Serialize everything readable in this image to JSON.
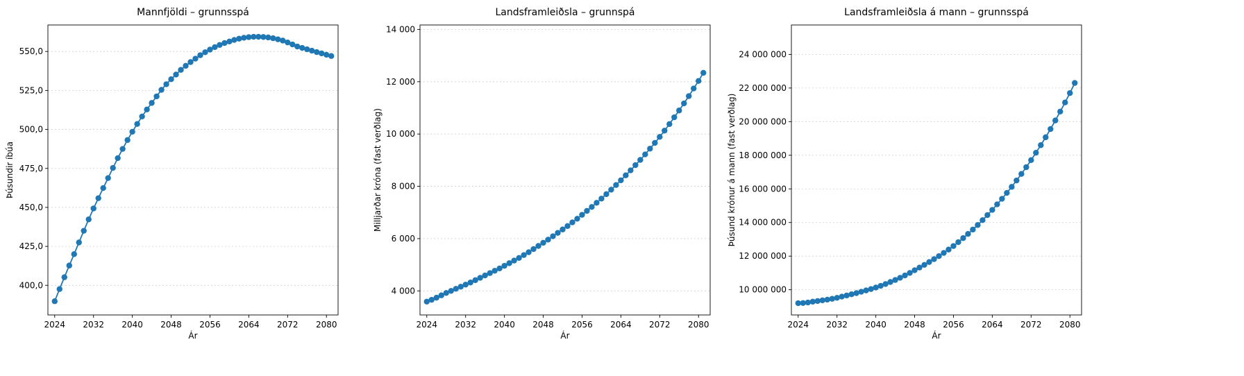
{
  "chart_data": [
    {
      "type": "line",
      "title": "Mannfjöldi – grunnsspá",
      "xlabel": "Ár",
      "ylabel": "Þúsundir íbúa",
      "xlim": [
        2022.6,
        2082.4
      ],
      "ylim": [
        381.0,
        567.0
      ],
      "xticks": [
        2024,
        2032,
        2040,
        2048,
        2056,
        2064,
        2072,
        2080
      ],
      "xtick_labels": [
        "2024",
        "2032",
        "2040",
        "2048",
        "2056",
        "2064",
        "2072",
        "2080"
      ],
      "yticks": [
        400,
        425,
        450,
        475,
        500,
        525,
        550
      ],
      "ytick_labels": [
        "400,0",
        "425,0",
        "450,0",
        "475,0",
        "500,0",
        "525,0",
        "550,0"
      ],
      "grid": "y",
      "color": "#1f77b4",
      "series": [
        {
          "x": [
            2024,
            2025,
            2026,
            2027,
            2028,
            2029,
            2030,
            2031,
            2032,
            2033,
            2034,
            2035,
            2036,
            2037,
            2038,
            2039,
            2040,
            2041,
            2042,
            2043,
            2044,
            2045,
            2046,
            2047,
            2048,
            2049,
            2050,
            2051,
            2052,
            2053,
            2054,
            2055,
            2056,
            2057,
            2058,
            2059,
            2060,
            2061,
            2062,
            2063,
            2064,
            2065,
            2066,
            2067,
            2068,
            2069,
            2070,
            2071,
            2072,
            2073,
            2074,
            2075,
            2076,
            2077,
            2078,
            2079,
            2080,
            2081
          ],
          "y": [
            389.8,
            397.6,
            405.2,
            412.7,
            420.0,
            427.5,
            435.0,
            442.3,
            449.3,
            455.9,
            462.4,
            468.8,
            475.3,
            481.6,
            487.5,
            493.2,
            498.5,
            503.5,
            508.3,
            512.8,
            517.0,
            521.2,
            525.4,
            529.0,
            532.2,
            535.2,
            538.2,
            540.8,
            543.2,
            545.4,
            547.6,
            549.5,
            551.2,
            552.8,
            554.2,
            555.4,
            556.4,
            557.4,
            558.2,
            558.8,
            559.2,
            559.4,
            559.4,
            559.3,
            559.0,
            558.5,
            557.8,
            557.0,
            555.8,
            554.5,
            553.2,
            552.3,
            551.4,
            550.5,
            549.6,
            548.8,
            547.9,
            547.1
          ]
        }
      ]
    },
    {
      "type": "line",
      "title": "Landsframleiðsla – grunnspá",
      "xlabel": "Ár",
      "ylabel": "Milljarðar króna (fast verðlag)",
      "xlim": [
        2022.6,
        2082.4
      ],
      "ylim": [
        3080,
        14170
      ],
      "xticks": [
        2024,
        2032,
        2040,
        2048,
        2056,
        2064,
        2072,
        2080
      ],
      "xtick_labels": [
        "2024",
        "2032",
        "2040",
        "2048",
        "2056",
        "2064",
        "2072",
        "2080"
      ],
      "yticks": [
        4000,
        6000,
        8000,
        10000,
        12000,
        14000
      ],
      "ytick_labels": [
        "4 000",
        "6 000",
        "8 000",
        "10 000",
        "12 000",
        "14 000"
      ],
      "grid": "y",
      "color": "#1f77b4",
      "series": [
        {
          "x": [
            2024,
            2025,
            2026,
            2027,
            2028,
            2029,
            2030,
            2031,
            2032,
            2033,
            2034,
            2035,
            2036,
            2037,
            2038,
            2039,
            2040,
            2041,
            2042,
            2043,
            2044,
            2045,
            2046,
            2047,
            2048,
            2049,
            2050,
            2051,
            2052,
            2053,
            2054,
            2055,
            2056,
            2057,
            2058,
            2059,
            2060,
            2061,
            2062,
            2063,
            2064,
            2065,
            2066,
            2067,
            2068,
            2069,
            2070,
            2071,
            2072,
            2073,
            2074,
            2075,
            2076,
            2077,
            2078,
            2079,
            2080,
            2081
          ],
          "y": [
            3590,
            3660,
            3740,
            3830,
            3920,
            4000,
            4080,
            4160,
            4240,
            4320,
            4410,
            4500,
            4590,
            4680,
            4770,
            4860,
            4960,
            5060,
            5160,
            5260,
            5370,
            5480,
            5600,
            5720,
            5840,
            5960,
            6090,
            6220,
            6350,
            6480,
            6620,
            6760,
            6910,
            7060,
            7210,
            7370,
            7530,
            7700,
            7870,
            8050,
            8230,
            8420,
            8610,
            8810,
            9010,
            9220,
            9440,
            9660,
            9890,
            10130,
            10380,
            10640,
            10900,
            11170,
            11450,
            11740,
            12030,
            12340
          ]
        }
      ]
    },
    {
      "type": "line",
      "title": "Landsframleiðsla á mann – grunnsspá",
      "xlabel": "Ár",
      "ylabel": "Þúsund krónur á mann (fast verðlag)",
      "xlim": [
        2022.6,
        2082.4
      ],
      "ylim": [
        8500000,
        25750000
      ],
      "xticks": [
        2024,
        2032,
        2040,
        2048,
        2056,
        2064,
        2072,
        2080
      ],
      "xtick_labels": [
        "2024",
        "2032",
        "2040",
        "2048",
        "2056",
        "2064",
        "2072",
        "2080"
      ],
      "yticks": [
        10000000,
        12000000,
        14000000,
        16000000,
        18000000,
        20000000,
        22000000,
        24000000
      ],
      "ytick_labels": [
        "10 000 000",
        "12 000 000",
        "14 000 000",
        "16 000 000",
        "18 000 000",
        "20 000 000",
        "22 000 000",
        "24 000 000"
      ],
      "grid": "y",
      "color": "#1f77b4",
      "series": [
        {
          "x": [
            2024,
            2025,
            2026,
            2027,
            2028,
            2029,
            2030,
            2031,
            2032,
            2033,
            2034,
            2035,
            2036,
            2037,
            2038,
            2039,
            2040,
            2041,
            2042,
            2043,
            2044,
            2045,
            2046,
            2047,
            2048,
            2049,
            2050,
            2051,
            2052,
            2053,
            2054,
            2055,
            2056,
            2057,
            2058,
            2059,
            2060,
            2061,
            2062,
            2063,
            2064,
            2065,
            2066,
            2067,
            2068,
            2069,
            2070,
            2071,
            2072,
            2073,
            2074,
            2075,
            2076,
            2077,
            2078,
            2079,
            2080,
            2081
          ],
          "y": [
            9200000,
            9210000,
            9240000,
            9290000,
            9330000,
            9370000,
            9410000,
            9460000,
            9520000,
            9590000,
            9660000,
            9730000,
            9800000,
            9880000,
            9960000,
            10040000,
            10130000,
            10230000,
            10340000,
            10460000,
            10580000,
            10710000,
            10850000,
            11000000,
            11160000,
            11320000,
            11480000,
            11650000,
            11820000,
            12000000,
            12190000,
            12390000,
            12600000,
            12830000,
            13070000,
            13320000,
            13580000,
            13850000,
            14140000,
            14440000,
            14750000,
            15080000,
            15410000,
            15760000,
            16120000,
            16500000,
            16890000,
            17290000,
            17710000,
            18150000,
            18600000,
            19070000,
            19560000,
            20070000,
            20600000,
            21140000,
            21700000,
            22300000
          ]
        }
      ]
    }
  ]
}
